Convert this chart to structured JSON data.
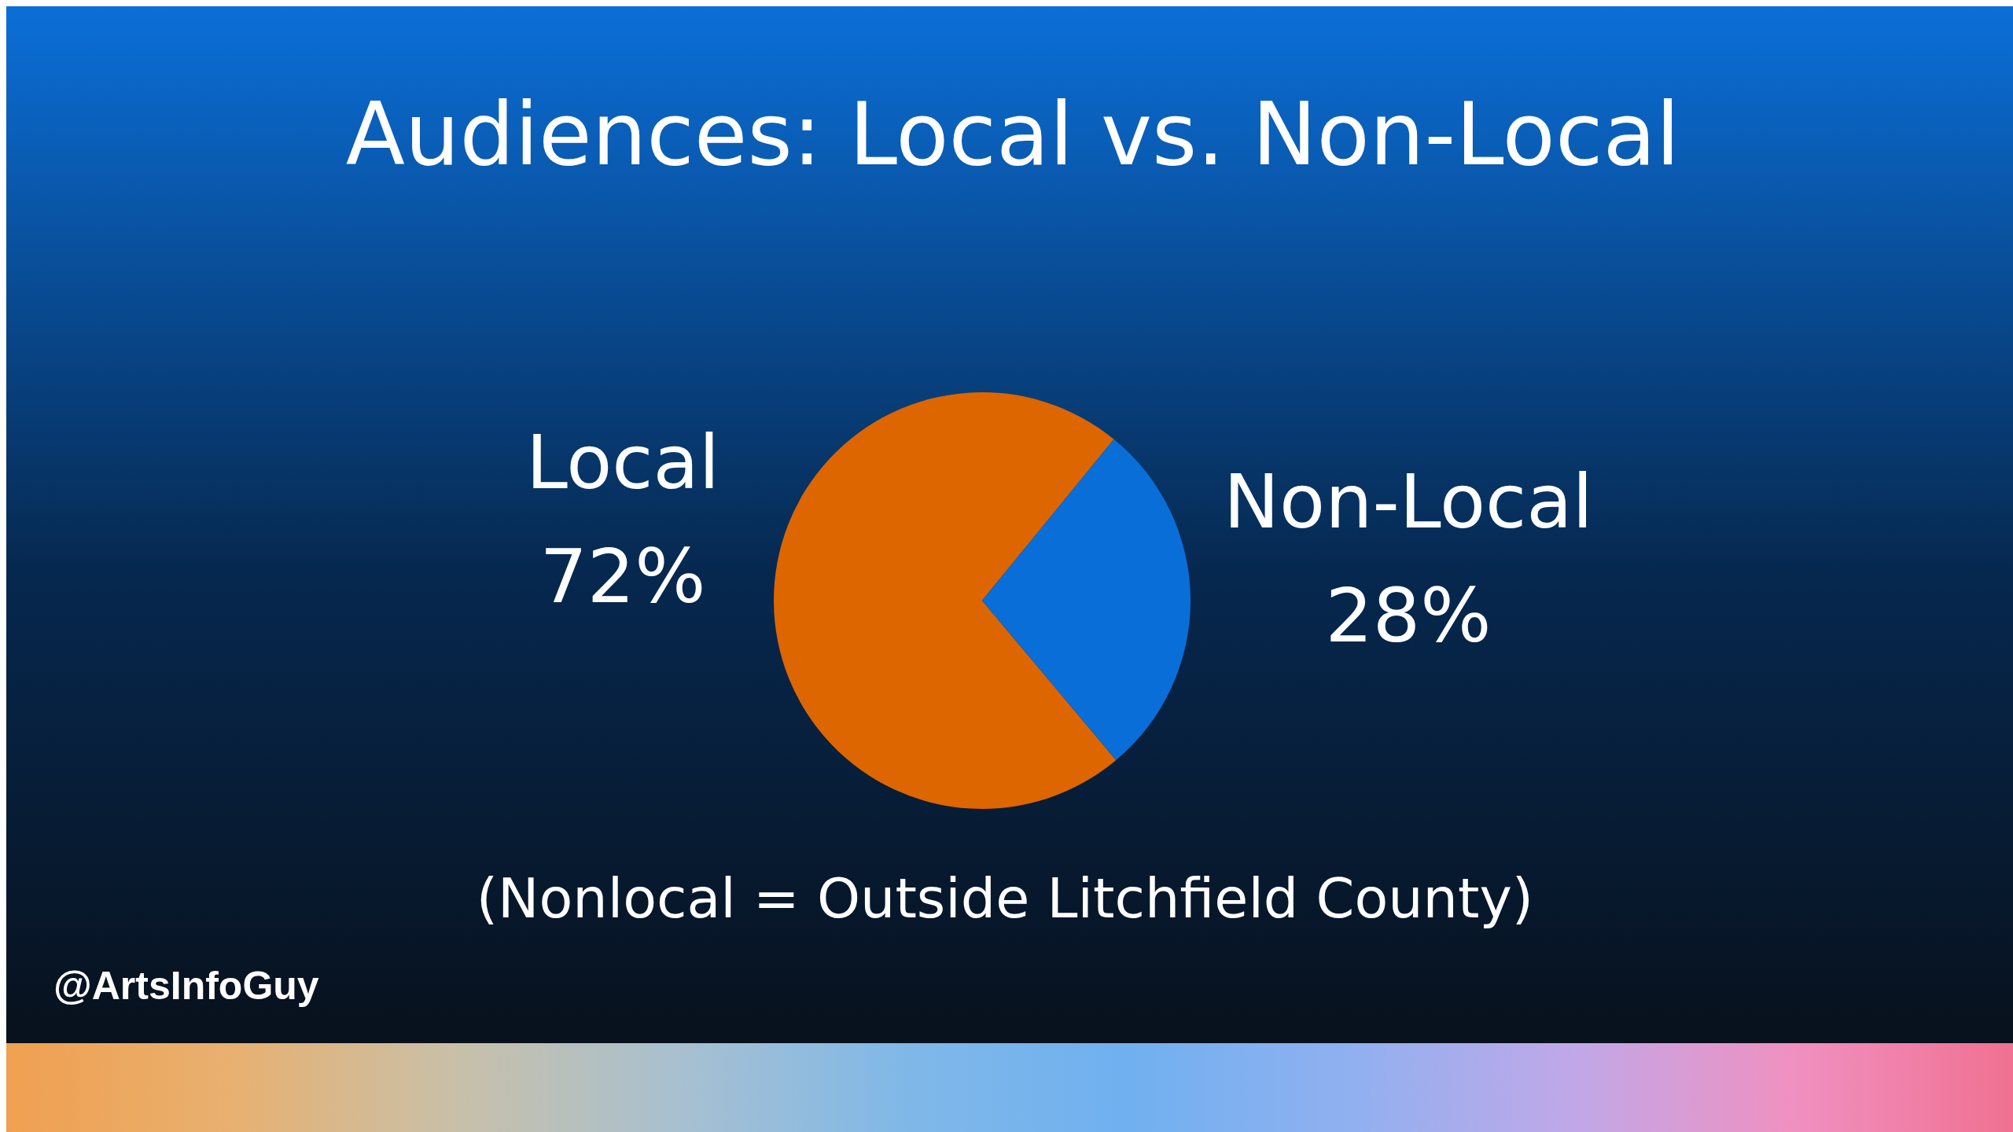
{
  "chart_data": {
    "type": "pie",
    "title": "Audiences: Local vs. Non-Local",
    "categories": [
      "Local",
      "Non-Local"
    ],
    "values": [
      72,
      28
    ],
    "value_labels": [
      "72%",
      "28%"
    ],
    "colors": [
      "#dd6600",
      "#0a6ed8"
    ],
    "annotations": [
      "(Nonlocal = Outside Litchfield County)",
      "@ArtsInfoGuy"
    ]
  }
}
